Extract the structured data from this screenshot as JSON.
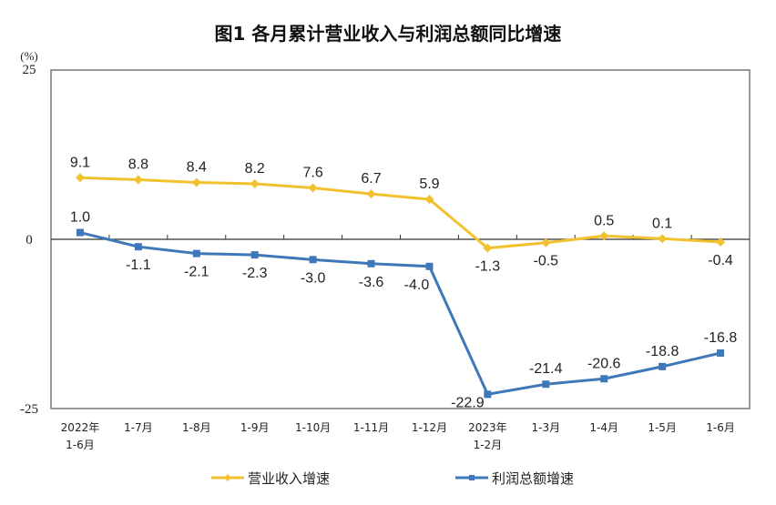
{
  "chart_data": {
    "type": "line",
    "title": "图1  各月累计营业收入与利润总额同比增速",
    "ylabel": "(%)",
    "ylim": [
      -25,
      25
    ],
    "yticks": [
      "25",
      "0",
      "-25"
    ],
    "grid": false,
    "legend_position": "bottom",
    "categories": [
      [
        "2022年",
        "1-6月"
      ],
      [
        "1-7月"
      ],
      [
        "1-8月"
      ],
      [
        "1-9月"
      ],
      [
        "1-10月"
      ],
      [
        "1-11月"
      ],
      [
        "1-12月"
      ],
      [
        "2023年",
        "1-2月"
      ],
      [
        "1-3月"
      ],
      [
        "1-4月"
      ],
      [
        "1-5月"
      ],
      [
        "1-6月"
      ]
    ],
    "series": [
      {
        "name": "营业收入增速",
        "color": "#F2C12E",
        "marker": "diamond",
        "values": [
          9.1,
          8.8,
          8.4,
          8.2,
          7.6,
          6.7,
          5.9,
          -1.3,
          -0.5,
          0.5,
          0.1,
          -0.4
        ],
        "labels": [
          "9.1",
          "8.8",
          "8.4",
          "8.2",
          "7.6",
          "6.7",
          "5.9",
          "-1.3",
          "-0.5",
          "0.5",
          "0.1",
          "-0.4"
        ]
      },
      {
        "name": "利润总额增速",
        "color": "#3F78B8",
        "marker": "square",
        "values": [
          1.0,
          -1.1,
          -2.1,
          -2.3,
          -3.0,
          -3.6,
          -4.0,
          -22.9,
          -21.4,
          -20.6,
          -18.8,
          -16.8
        ],
        "labels": [
          "1.0",
          "-1.1",
          "-2.1",
          "-2.3",
          "-3.0",
          "-3.6",
          "-4.0",
          "-22.9",
          "-21.4",
          "-20.6",
          "-18.8",
          "-16.8"
        ]
      }
    ]
  }
}
